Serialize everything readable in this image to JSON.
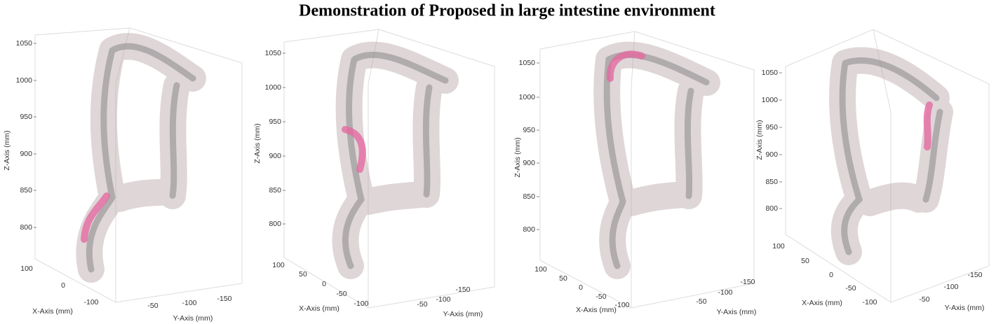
{
  "title": "Demonstration of Proposed in large intestine environment",
  "panels": [
    {
      "x_label": "X-Axis (mm)",
      "y_label": "Y-Axis (mm)",
      "z_label": "Z-Axis (mm)",
      "zticks": [
        800,
        850,
        900,
        950,
        1000,
        1050
      ],
      "xticks": [
        100,
        0,
        -100
      ],
      "yticks": [
        -50,
        -100,
        -150
      ]
    },
    {
      "x_label": "X-Axis (mm)",
      "y_label": "Y-Axis (mm)",
      "z_label": "Z-Axis (mm)",
      "zticks": [
        800,
        850,
        900,
        950,
        1000,
        1050
      ],
      "xticks": [
        100,
        50,
        0,
        -50,
        -100
      ],
      "yticks": [
        -50,
        -100,
        -150
      ]
    },
    {
      "x_label": "X-Axis (mm)",
      "y_label": "Y-Axis (mm)",
      "z_label": "Z-Axis (mm)",
      "zticks": [
        800,
        850,
        900,
        950,
        1000,
        1050
      ],
      "xticks": [
        100,
        50,
        0,
        -50,
        -100
      ],
      "yticks": [
        -50,
        -100,
        -150
      ]
    },
    {
      "x_label": "X-Axis (mm)",
      "y_label": "Y-Axis (mm)",
      "z_label": "Z-Axis (mm)",
      "zticks": [
        800,
        850,
        900,
        950,
        1000,
        1050
      ],
      "xticks": [
        100,
        50,
        0,
        -50,
        -100
      ],
      "yticks": [
        -50,
        -100,
        -150
      ]
    }
  ]
}
